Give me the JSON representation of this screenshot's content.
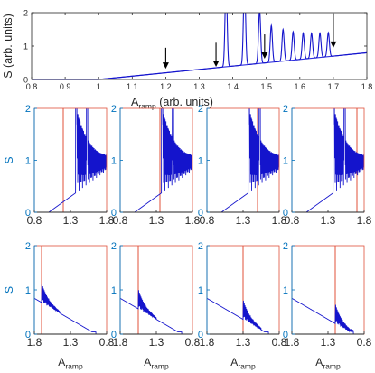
{
  "chart_data": [
    {
      "id": "top",
      "type": "line",
      "xlabel_main": "A",
      "xlabel_sub": "ramp",
      "xlabel_suffix": " (arb. units)",
      "ylabel": "S (arb. units)",
      "xlim": [
        0.8,
        1.8
      ],
      "ylim": [
        0,
        2
      ],
      "x_ticks": [
        "0.8",
        "0.9",
        "1",
        "1.1",
        "1.2",
        "1.3",
        "1.4",
        "1.5",
        "1.6",
        "1.7",
        "1.8"
      ],
      "y_ticks": [
        "0",
        "1",
        "2"
      ],
      "ramp_line": [
        [
          0.8,
          0.0
        ],
        [
          1.0,
          0.0
        ],
        [
          1.8,
          0.8
        ]
      ],
      "resonances": [
        {
          "x": 1.38,
          "peak": 2.5
        },
        {
          "x": 1.435,
          "peak": 2.5
        },
        {
          "x": 1.48,
          "peak": 1.6
        },
        {
          "x": 1.515,
          "peak": 1.1
        },
        {
          "x": 1.55,
          "peak": 0.95
        },
        {
          "x": 1.58,
          "peak": 0.85
        },
        {
          "x": 1.61,
          "peak": 0.78
        },
        {
          "x": 1.635,
          "peak": 0.75
        },
        {
          "x": 1.66,
          "peak": 0.73
        },
        {
          "x": 1.685,
          "peak": 0.72
        }
      ],
      "arrows": [
        {
          "x": 1.2,
          "y_from": 0.95,
          "y_to": 0.32
        },
        {
          "x": 1.35,
          "y_from": 1.1,
          "y_to": 0.38
        },
        {
          "x": 1.495,
          "y_from": 1.35,
          "y_to": 0.62
        },
        {
          "x": 1.7,
          "y_from": 1.95,
          "y_to": 0.95
        }
      ]
    },
    {
      "id": "mid",
      "type": "line",
      "xlim": [
        0.8,
        1.8
      ],
      "ylim": [
        0,
        2
      ],
      "x_ticks": [
        "0.8",
        "1.3",
        "1.8"
      ],
      "y_ticks": [
        "0",
        "1",
        "2"
      ],
      "ylabel": "S",
      "panels": [
        {
          "marker": 1.2
        },
        {
          "marker": 1.35
        },
        {
          "marker": 1.5
        },
        {
          "marker": 1.7
        }
      ]
    },
    {
      "id": "bot",
      "type": "line",
      "xlim": [
        1.8,
        0.8
      ],
      "ylim": [
        0,
        2
      ],
      "x_ticks": [
        "1.8",
        "1.3",
        "0.8"
      ],
      "y_ticks": [
        "0",
        "1",
        "2"
      ],
      "ylabel": "S",
      "xlabel_main": "A",
      "xlabel_sub": "ramp",
      "panels": [
        {
          "marker": 1.7
        },
        {
          "marker": 1.55
        },
        {
          "marker": 1.3
        },
        {
          "marker": 1.2
        }
      ]
    }
  ],
  "colors": {
    "signal": "#1414CC",
    "ramp": "#3030E0",
    "marker": "#E0503A",
    "tick_blue": "#0072BD",
    "axis": "#262626",
    "arrow": "#000000"
  }
}
